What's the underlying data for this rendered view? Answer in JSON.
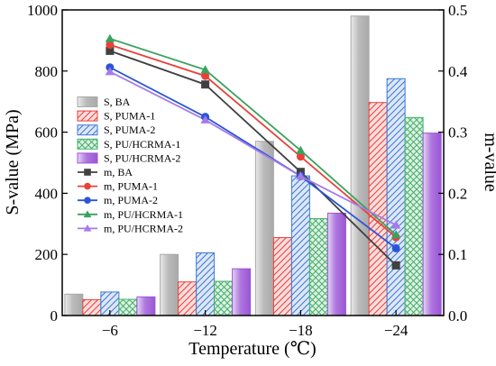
{
  "chart_data": {
    "type": "bar",
    "xlabel": "Temperature (℃)",
    "ylabel": "S-value (MPa)",
    "y2label": "m-value",
    "categories": [
      "−6",
      "−12",
      "−18",
      "−24"
    ],
    "ylim": [
      0,
      1000
    ],
    "y2lim": [
      0,
      0.5
    ],
    "yticks": [
      "0",
      "200",
      "400",
      "600",
      "800",
      "1000"
    ],
    "y2ticks": [
      "0.0",
      "0.1",
      "0.2",
      "0.3",
      "0.4",
      "0.5"
    ],
    "legend_position": "left",
    "bar_series": [
      {
        "name": "S, BA",
        "values": [
          70,
          200,
          570,
          980
        ],
        "color": "#a9a9a9",
        "pattern": "shade"
      },
      {
        "name": "S, PUMA-1",
        "values": [
          52,
          110,
          255,
          697
        ],
        "color": "#e8413a",
        "pattern": "hatch-right"
      },
      {
        "name": "S, PUMA-2",
        "values": [
          77,
          205,
          457,
          775
        ],
        "color": "#3d78d6",
        "pattern": "hatch-right"
      },
      {
        "name": "S, PU/HCRMA-1",
        "values": [
          53,
          112,
          317,
          648
        ],
        "color": "#46b06a",
        "pattern": "crosshatch"
      },
      {
        "name": "S, PU/HCRMA-2",
        "values": [
          61,
          153,
          335,
          597
        ],
        "color": "#9b55d6",
        "pattern": "shade"
      }
    ],
    "line_series": [
      {
        "name": "m, BA",
        "values": [
          0.433,
          0.378,
          0.235,
          0.082
        ],
        "color": "#404040",
        "marker": "square"
      },
      {
        "name": "m, PUMA-1",
        "values": [
          0.443,
          0.392,
          0.26,
          0.128
        ],
        "color": "#e8413a",
        "marker": "circle"
      },
      {
        "name": "m, PUMA-2",
        "values": [
          0.406,
          0.325,
          0.228,
          0.11
        ],
        "color": "#2b55d8",
        "marker": "circle"
      },
      {
        "name": "m, PU/HCRMA-1",
        "values": [
          0.453,
          0.402,
          0.27,
          0.132
        ],
        "color": "#3aa25c",
        "marker": "triangle"
      },
      {
        "name": "m, PU/HCRMA-2",
        "values": [
          0.399,
          0.32,
          0.228,
          0.148
        ],
        "color": "#a57be8",
        "marker": "triangle"
      }
    ]
  }
}
